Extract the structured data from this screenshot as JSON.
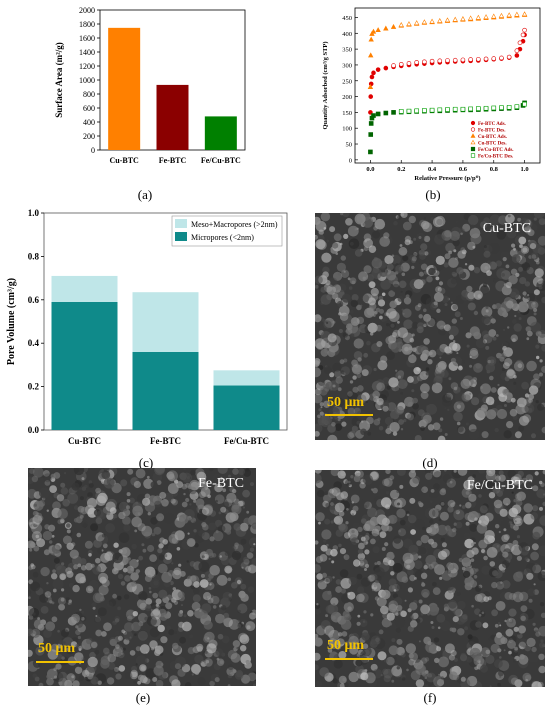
{
  "panels": {
    "a": "(a)",
    "b": "(b)",
    "c": "(c)",
    "d": "(d)",
    "e": "(e)",
    "f": "(f)"
  },
  "sem": {
    "d": {
      "title": "Cu-BTC",
      "scale": "50 μm"
    },
    "e": {
      "title": "Fe-BTC",
      "scale": "50 μm"
    },
    "f": {
      "title": "Fe/Cu-BTC",
      "scale": "50 μm"
    }
  },
  "chart_data": [
    {
      "type": "bar",
      "ylabel": "Surface Area (m²/g)",
      "categories": [
        "Cu-BTC",
        "Fe-BTC",
        "Fe/Cu-BTC"
      ],
      "values": [
        1745,
        930,
        480
      ],
      "colors": [
        "#ff8000",
        "#8b0000",
        "#008000"
      ],
      "ylim": [
        0,
        2000
      ],
      "yticks": [
        "0",
        "200",
        "400",
        "600",
        "800",
        "1000",
        "1200",
        "1400",
        "1600",
        "1800",
        "2000"
      ]
    },
    {
      "type": "scatter",
      "xlabel": "Relative Pressure (p/p⁰)",
      "ylabel": "Quantity Adsorbed (cm³/g STP)",
      "xlim": [
        -0.1,
        1.1
      ],
      "ylim": [
        -10,
        480
      ],
      "xticks": [
        "0.0",
        "0.2",
        "0.4",
        "0.6",
        "0.8",
        "1.0"
      ],
      "yticks": [
        "0",
        "50",
        "100",
        "150",
        "200",
        "250",
        "300",
        "350",
        "400",
        "450"
      ],
      "legend": "bottom-right",
      "series": [
        {
          "name": "Fe-BTC Ads.",
          "color": "#e00000",
          "marker": "circle",
          "filled": true,
          "x": [
            0.0,
            0.002,
            0.005,
            0.01,
            0.02,
            0.05,
            0.1,
            0.15,
            0.2,
            0.25,
            0.3,
            0.35,
            0.4,
            0.45,
            0.5,
            0.55,
            0.6,
            0.65,
            0.7,
            0.75,
            0.8,
            0.85,
            0.9,
            0.95,
            0.97,
            0.99,
            1.0
          ],
          "y": [
            150,
            200,
            240,
            262,
            275,
            285,
            290,
            294,
            297,
            300,
            302,
            304,
            306,
            308,
            309,
            311,
            312,
            313,
            314,
            316,
            318,
            320,
            323,
            330,
            350,
            375,
            395
          ]
        },
        {
          "name": "Fe-BTC Des.",
          "color": "#e00000",
          "marker": "circle",
          "filled": false,
          "x": [
            1.0,
            0.99,
            0.97,
            0.95,
            0.9,
            0.85,
            0.8,
            0.75,
            0.7,
            0.65,
            0.6,
            0.55,
            0.5,
            0.45,
            0.4,
            0.35,
            0.3,
            0.25,
            0.2,
            0.15
          ],
          "y": [
            410,
            395,
            370,
            345,
            325,
            322,
            320,
            319,
            318,
            317,
            316,
            315,
            314,
            313,
            312,
            310,
            308,
            305,
            302,
            298
          ]
        },
        {
          "name": "Cu-BTC Ads.",
          "color": "#ff8000",
          "marker": "triangle",
          "filled": true,
          "x": [
            0.0,
            0.002,
            0.005,
            0.01,
            0.02,
            0.05,
            0.1,
            0.15,
            0.2,
            0.25,
            0.3,
            0.35,
            0.4,
            0.45,
            0.5,
            0.55,
            0.6,
            0.65,
            0.7,
            0.75,
            0.8,
            0.85,
            0.9,
            0.95,
            1.0
          ],
          "y": [
            230,
            330,
            380,
            398,
            405,
            410,
            415,
            420,
            424,
            427,
            430,
            433,
            435,
            437,
            439,
            441,
            443,
            444,
            446,
            448,
            450,
            452,
            454,
            456,
            458
          ]
        },
        {
          "name": "Cu-BTC Des.",
          "color": "#ff8000",
          "marker": "triangle",
          "filled": false,
          "x": [
            1.0,
            0.95,
            0.9,
            0.85,
            0.8,
            0.75,
            0.7,
            0.65,
            0.6,
            0.55,
            0.5,
            0.45,
            0.4,
            0.35,
            0.3,
            0.25,
            0.2
          ],
          "y": [
            460,
            459,
            457,
            455,
            453,
            451,
            449,
            447,
            445,
            443,
            441,
            439,
            437,
            435,
            432,
            429,
            426
          ]
        },
        {
          "name": "Fe/Cu-BTC Ads.",
          "color": "#006400",
          "marker": "square",
          "filled": true,
          "x": [
            0.0,
            0.002,
            0.005,
            0.01,
            0.02,
            0.05,
            0.1,
            0.15,
            0.2,
            0.25,
            0.3,
            0.35,
            0.4,
            0.45,
            0.5,
            0.55,
            0.6,
            0.65,
            0.7,
            0.75,
            0.8,
            0.85,
            0.9,
            0.95,
            0.99,
            1.0
          ],
          "y": [
            25,
            80,
            115,
            132,
            140,
            145,
            148,
            150,
            151,
            152,
            153,
            154,
            155,
            155,
            156,
            157,
            158,
            158,
            159,
            160,
            161,
            162,
            163,
            165,
            172,
            180
          ]
        },
        {
          "name": "Fe/Cu-BTC Des.",
          "color": "#00a000",
          "marker": "square",
          "filled": false,
          "x": [
            1.0,
            0.95,
            0.9,
            0.85,
            0.8,
            0.75,
            0.7,
            0.65,
            0.6,
            0.55,
            0.5,
            0.45,
            0.4,
            0.35,
            0.3,
            0.25,
            0.2
          ],
          "y": [
            176,
            168,
            166,
            165,
            164,
            163,
            162,
            161,
            160,
            160,
            159,
            158,
            157,
            156,
            155,
            154,
            153
          ]
        }
      ]
    },
    {
      "type": "bar",
      "stacked": true,
      "ylabel": "Pore Volume (cm³/g)",
      "categories": [
        "Cu-BTC",
        "Fe-BTC",
        "Fe/Cu-BTC"
      ],
      "ylim": [
        0,
        1.0
      ],
      "yticks": [
        "0.0",
        "0.2",
        "0.4",
        "0.6",
        "0.8",
        "1.0"
      ],
      "legend": "top-right",
      "series": [
        {
          "name": "Micropores (<2nm)",
          "color": "#0f8a8a",
          "values": [
            0.59,
            0.36,
            0.205
          ]
        },
        {
          "name": "Meso+Macropores (>2nm)",
          "color": "#bfe6e8",
          "values": [
            0.12,
            0.275,
            0.07
          ]
        }
      ]
    }
  ]
}
